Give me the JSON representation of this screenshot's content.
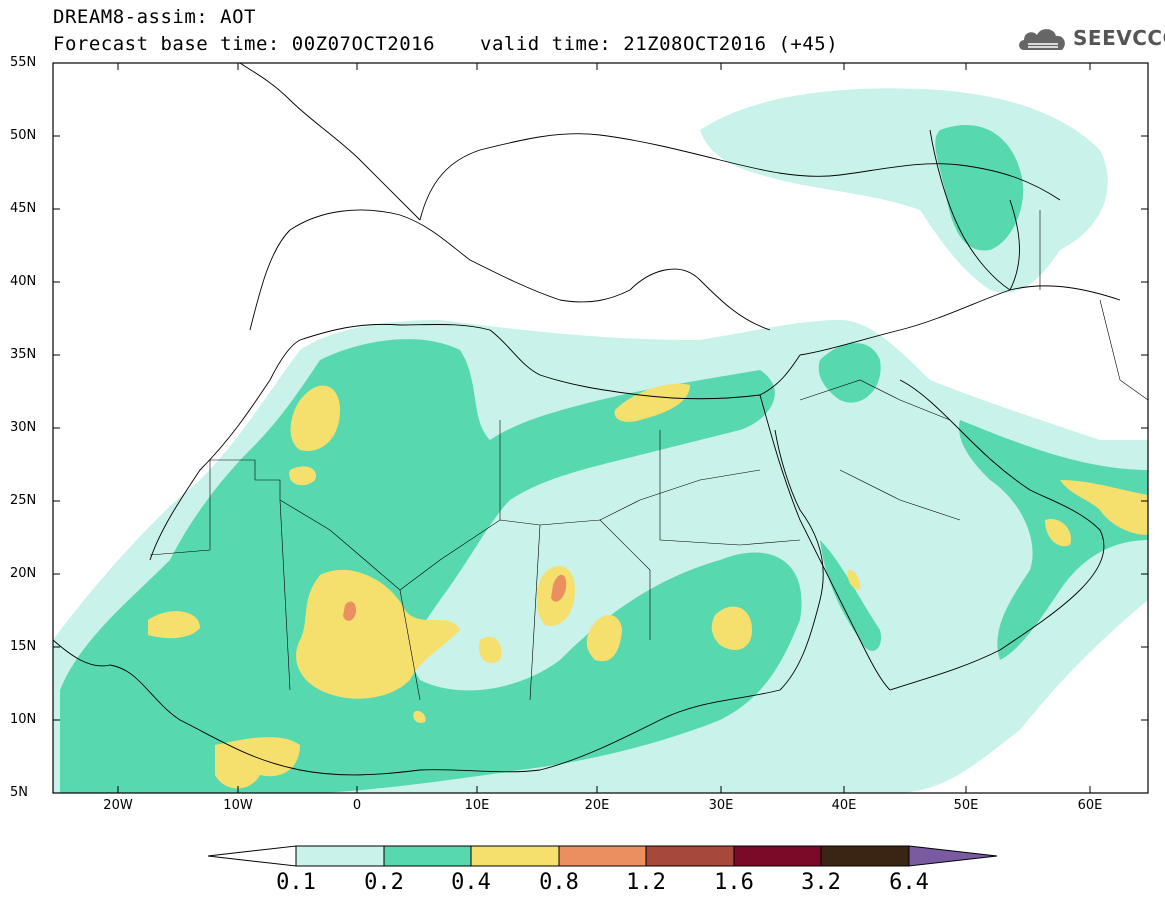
{
  "header": {
    "title_line1": "DREAM8-assim: AOT",
    "title_line2": "Forecast base time: 00Z07OCT2016",
    "valid_time": "valid time: 21Z08OCT2016 (+45)"
  },
  "logo": {
    "text": "SEEVCCC",
    "icon": "cloud-logo-icon"
  },
  "map": {
    "lat_labels": [
      "55N",
      "50N",
      "45N",
      "40N",
      "35N",
      "30N",
      "25N",
      "20N",
      "15N",
      "10N",
      "5N"
    ],
    "lon_labels": [
      "20W",
      "10W",
      "0",
      "10E",
      "20E",
      "30E",
      "40E",
      "50E",
      "60E"
    ]
  },
  "colorbar": {
    "labels": [
      "0.1",
      "0.2",
      "0.4",
      "0.8",
      "1.2",
      "1.6",
      "3.2",
      "6.4"
    ],
    "colors": [
      "#ffffff",
      "#c8f2ea",
      "#58d8ae",
      "#f5e06e",
      "#ea9060",
      "#a6483a",
      "#7a0a26",
      "#3a2514",
      "#7a5aa0"
    ]
  }
}
